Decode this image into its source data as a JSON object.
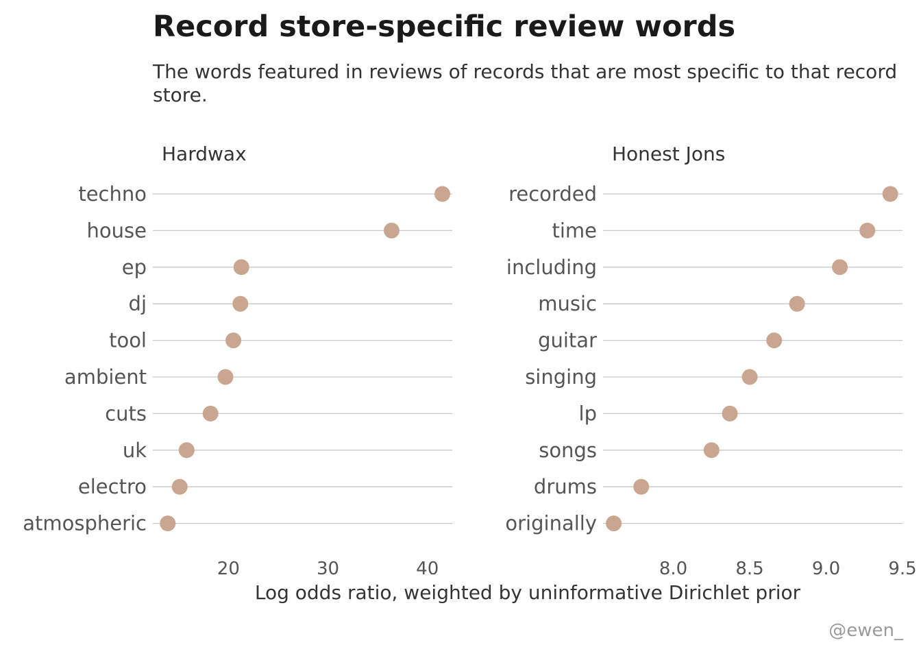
{
  "title": "Record store-specific review words",
  "subtitle": "The words featured in reviews of records that are most specific to that record store.",
  "xlabel": "Log odds ratio, weighted by uninformative Dirichlet prior",
  "caption": "@ewen_",
  "point_color": "#c8a690",
  "chart_data": [
    {
      "type": "scatter",
      "facet": "Hardwax",
      "categories": [
        "techno",
        "house",
        "ep",
        "dj",
        "tool",
        "ambient",
        "cuts",
        "uk",
        "electro",
        "atmospheric"
      ],
      "values": [
        41.5,
        36.4,
        21.3,
        21.2,
        20.5,
        19.7,
        18.2,
        15.8,
        15.1,
        13.9
      ],
      "xticks": [
        20,
        30,
        40
      ],
      "xtick_labels": [
        "20",
        "30",
        "40"
      ],
      "xlim": [
        12.4,
        42.5
      ]
    },
    {
      "type": "scatter",
      "facet": "Honest Jons",
      "categories": [
        "recorded",
        "time",
        "including",
        "music",
        "guitar",
        "singing",
        "lp",
        "songs",
        "drums",
        "originally"
      ],
      "values": [
        9.42,
        9.27,
        9.09,
        8.81,
        8.66,
        8.5,
        8.37,
        8.25,
        7.79,
        7.61
      ],
      "xticks": [
        8.0,
        8.5,
        9.0,
        9.5
      ],
      "xtick_labels": [
        "8.0",
        "8.5",
        "9.0",
        "9.5"
      ],
      "xlim": [
        7.54,
        9.5
      ]
    }
  ]
}
